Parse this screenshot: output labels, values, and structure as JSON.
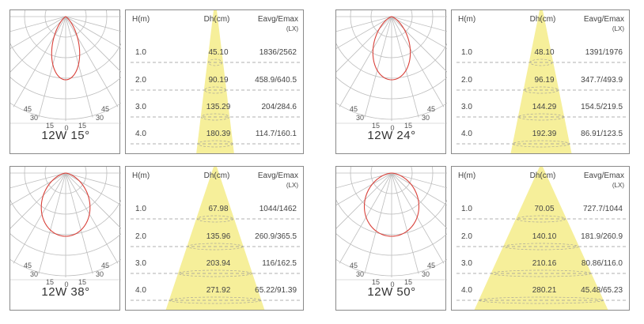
{
  "table_headers": {
    "height": "H(m)",
    "diameter": "Dh(cm)",
    "illuminance": "Eavg/Emax",
    "unit": "(LX)"
  },
  "polar_labels": {
    "deg45": "45",
    "deg30": "30",
    "deg15": "15",
    "deg0": "0"
  },
  "colors": {
    "beam": "#f6ef9a",
    "curve": "#d9413a",
    "grid": "#bdbdbd",
    "dash": "#999999"
  },
  "panels": [
    {
      "title": "12W 15°",
      "beam_angle": 15,
      "rows": [
        {
          "h": "1.0",
          "dh": "45.10",
          "e": "1836/2562"
        },
        {
          "h": "2.0",
          "dh": "90.19",
          "e": "458.9/640.5"
        },
        {
          "h": "3.0",
          "dh": "135.29",
          "e": "204/284.6"
        },
        {
          "h": "4.0",
          "dh": "180.39",
          "e": "114.7/160.1"
        }
      ]
    },
    {
      "title": "12W 24°",
      "beam_angle": 24,
      "rows": [
        {
          "h": "1.0",
          "dh": "48.10",
          "e": "1391/1976"
        },
        {
          "h": "2.0",
          "dh": "96.19",
          "e": "347.7/493.9"
        },
        {
          "h": "3.0",
          "dh": "144.29",
          "e": "154.5/219.5"
        },
        {
          "h": "4.0",
          "dh": "192.39",
          "e": "86.91/123.5"
        }
      ]
    },
    {
      "title": "12W 38°",
      "beam_angle": 38,
      "rows": [
        {
          "h": "1.0",
          "dh": "67.98",
          "e": "1044/1462"
        },
        {
          "h": "2.0",
          "dh": "135.96",
          "e": "260.9/365.5"
        },
        {
          "h": "3.0",
          "dh": "203.94",
          "e": "116/162.5"
        },
        {
          "h": "4.0",
          "dh": "271.92",
          "e": "65.22/91.39"
        }
      ]
    },
    {
      "title": "12W 50°",
      "beam_angle": 50,
      "rows": [
        {
          "h": "1.0",
          "dh": "70.05",
          "e": "727.7/1044"
        },
        {
          "h": "2.0",
          "dh": "140.10",
          "e": "181.9/260.9"
        },
        {
          "h": "3.0",
          "dh": "210.16",
          "e": "80.86/116.0"
        },
        {
          "h": "4.0",
          "dh": "280.21",
          "e": "45.48/65.23"
        }
      ]
    }
  ]
}
